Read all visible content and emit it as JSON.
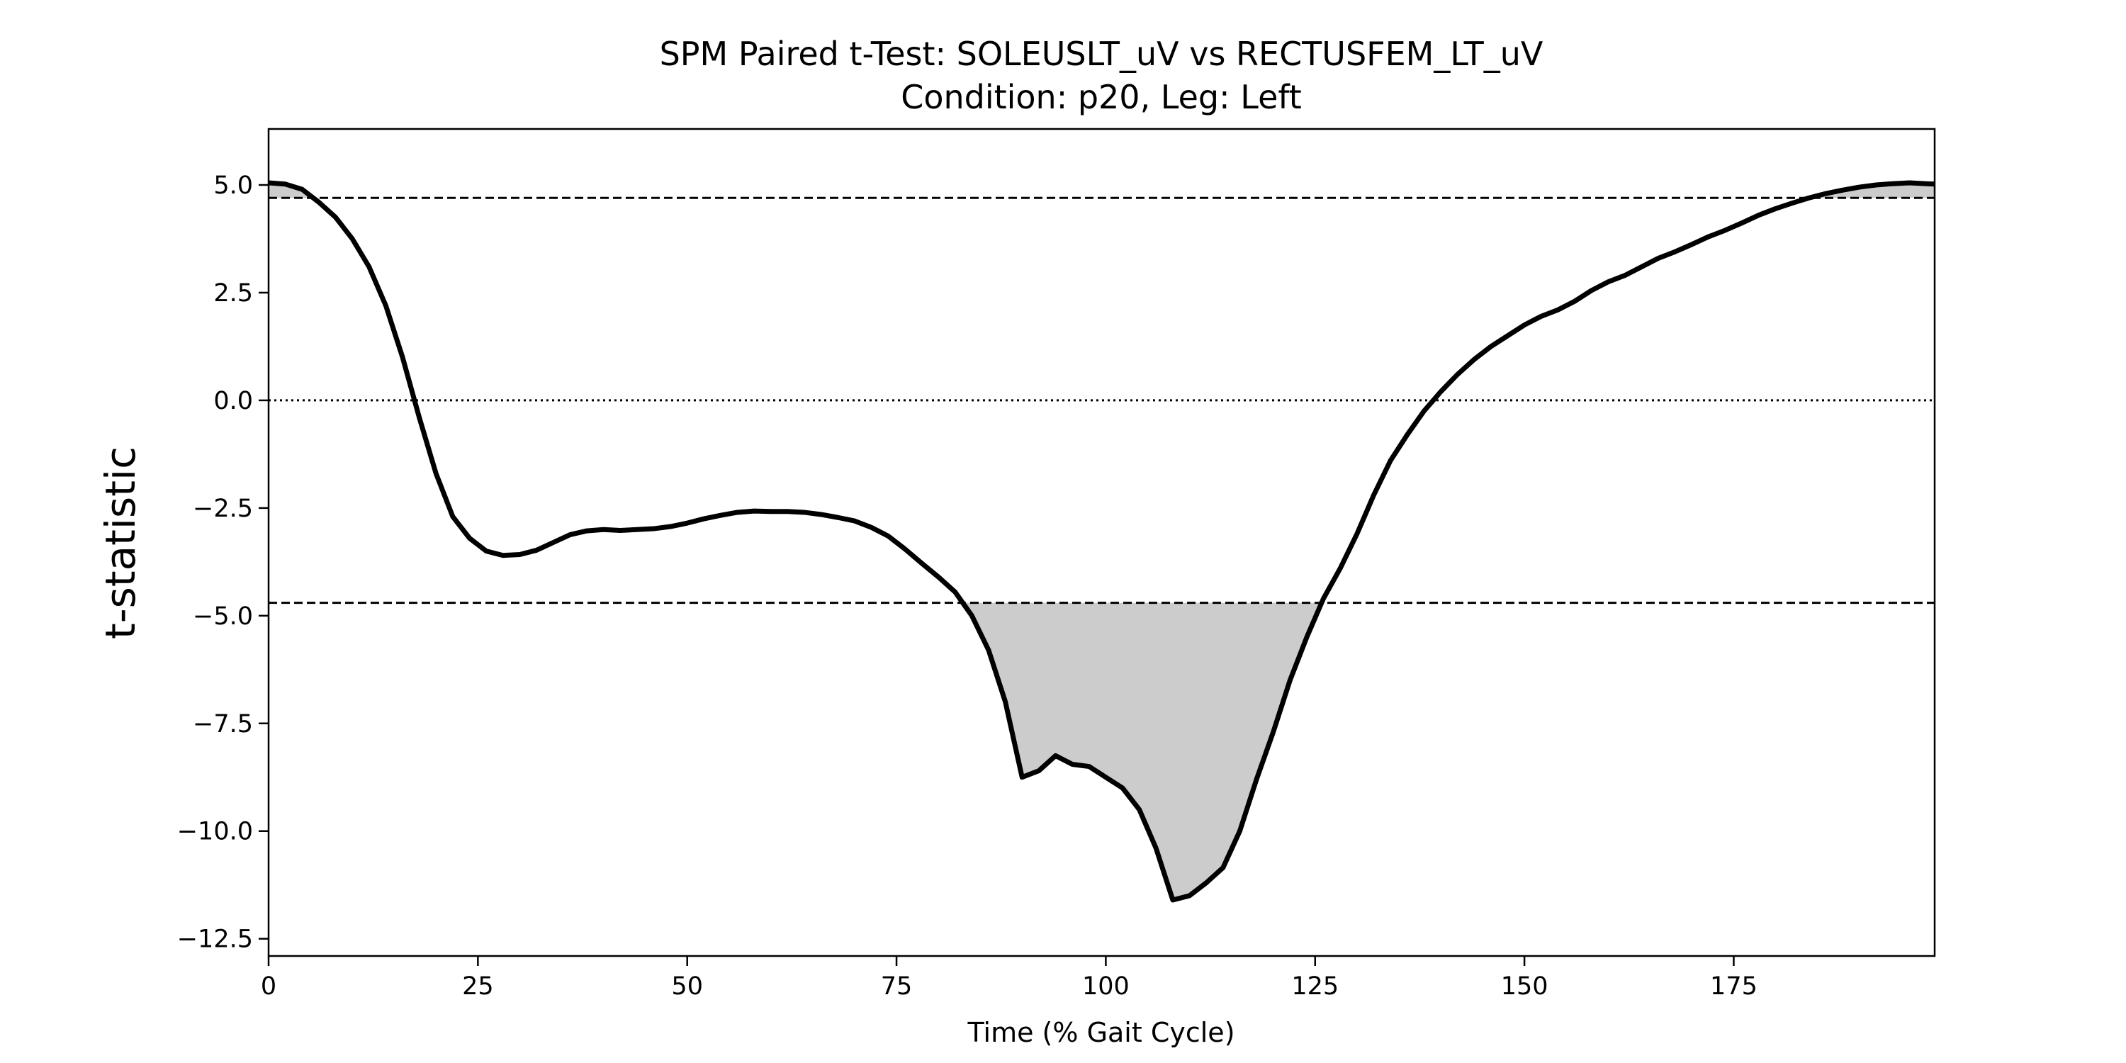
{
  "chart_data": {
    "type": "line",
    "title": "SPM Paired t-Test: SOLEUSLT_uV vs RECTUSFEM_LT_uV",
    "subtitle": "Condition: p20, Leg: Left",
    "x_label": "Time (% Gait Cycle)",
    "y_label": "t-statistic",
    "x": [
      0,
      2,
      4,
      6,
      8,
      10,
      12,
      14,
      16,
      18,
      20,
      22,
      24,
      26,
      28,
      30,
      32,
      34,
      36,
      38,
      40,
      42,
      44,
      46,
      48,
      50,
      52,
      54,
      56,
      58,
      60,
      62,
      64,
      66,
      68,
      70,
      72,
      74,
      76,
      78,
      80,
      82,
      84,
      86,
      88,
      90,
      92,
      94,
      96,
      98,
      100,
      102,
      104,
      106,
      108,
      110,
      112,
      114,
      116,
      118,
      120,
      122,
      124,
      126,
      128,
      130,
      132,
      134,
      136,
      138,
      140,
      142,
      144,
      146,
      148,
      150,
      152,
      154,
      156,
      158,
      160,
      162,
      164,
      166,
      168,
      170,
      172,
      174,
      176,
      178,
      180,
      182,
      184,
      186,
      188,
      190,
      192,
      194,
      196,
      198,
      199
    ],
    "series": [
      {
        "color": "#000000",
        "values": [
          5.05,
          5.02,
          4.9,
          4.6,
          4.25,
          3.75,
          3.1,
          2.2,
          1.0,
          -0.4,
          -1.7,
          -2.7,
          -3.2,
          -3.5,
          -3.6,
          -3.58,
          -3.48,
          -3.3,
          -3.12,
          -3.03,
          -3.0,
          -3.02,
          -3.0,
          -2.98,
          -2.93,
          -2.85,
          -2.75,
          -2.67,
          -2.6,
          -2.57,
          -2.58,
          -2.58,
          -2.6,
          -2.65,
          -2.72,
          -2.8,
          -2.95,
          -3.15,
          -3.45,
          -3.78,
          -4.1,
          -4.45,
          -5.0,
          -5.8,
          -7.0,
          -8.75,
          -8.6,
          -8.25,
          -8.45,
          -8.5,
          -8.75,
          -9.0,
          -9.5,
          -10.4,
          -11.6,
          -11.5,
          -11.2,
          -10.85,
          -10.0,
          -8.8,
          -7.7,
          -6.5,
          -5.5,
          -4.6,
          -3.9,
          -3.1,
          -2.2,
          -1.4,
          -0.8,
          -0.25,
          0.2,
          0.6,
          0.95,
          1.25,
          1.5,
          1.75,
          1.95,
          2.1,
          2.3,
          2.55,
          2.75,
          2.9,
          3.1,
          3.3,
          3.45,
          3.62,
          3.8,
          3.95,
          4.12,
          4.3,
          4.45,
          4.58,
          4.7,
          4.8,
          4.88,
          4.95,
          5.0,
          5.03,
          5.05,
          5.03,
          5.02
        ]
      }
    ],
    "hlines": [
      {
        "value": 4.7,
        "style": "dashed"
      },
      {
        "value": -4.7,
        "style": "dashed"
      },
      {
        "value": 0,
        "style": "dotted"
      }
    ],
    "shade_color": "#cccccc",
    "xlim": [
      0,
      199
    ],
    "ylim": [
      -12.9,
      6.3
    ],
    "xticks": [
      0,
      25,
      50,
      75,
      100,
      125,
      150,
      175
    ],
    "yticks": [
      {
        "value": 5,
        "label": "5.0"
      },
      {
        "value": 2.5,
        "label": "2.5"
      },
      {
        "value": 0,
        "label": "0.0"
      },
      {
        "value": -2.5,
        "label": "−2.5"
      },
      {
        "value": -5,
        "label": "−5.0"
      },
      {
        "value": -7.5,
        "label": "−7.5"
      },
      {
        "value": -10,
        "label": "−10.0"
      },
      {
        "value": -12.5,
        "label": "−12.5"
      }
    ]
  }
}
